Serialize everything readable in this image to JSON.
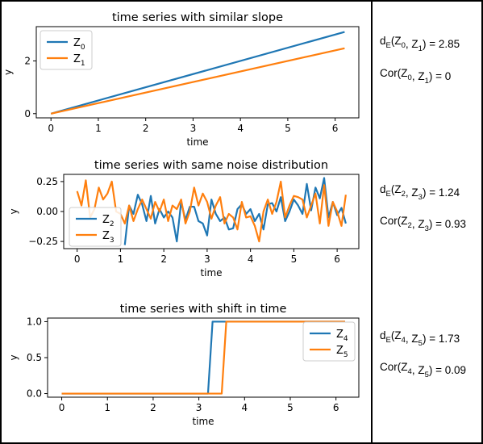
{
  "chart_data": [
    {
      "type": "line",
      "title": "time series with similar slope",
      "xlabel": "time",
      "ylabel": "y",
      "xlim": [
        -0.31,
        6.5
      ],
      "ylim": [
        -0.16,
        3.3
      ],
      "xticks": [
        0,
        1,
        2,
        3,
        4,
        5,
        6
      ],
      "yticks": [
        0,
        2
      ],
      "legend_position": "upper left",
      "series": [
        {
          "name": "Z",
          "sub": "0",
          "color": "#1f77b4",
          "x": [
            0,
            6.2
          ],
          "y": [
            0,
            3.1
          ]
        },
        {
          "name": "Z",
          "sub": "1",
          "color": "#ff7f0e",
          "x": [
            0,
            6.2
          ],
          "y": [
            0,
            2.48
          ]
        }
      ]
    },
    {
      "type": "line",
      "title": "time series with same noise distribution",
      "xlabel": "time",
      "ylabel": "y",
      "xlim": [
        -0.31,
        6.5
      ],
      "ylim": [
        -0.31,
        0.31
      ],
      "xticks": [
        0,
        1,
        2,
        3,
        4,
        5,
        6
      ],
      "yticks": [
        0.25,
        0.0,
        -0.25
      ],
      "ytick_labels": [
        "0.25",
        "0.00",
        "−0.25"
      ],
      "legend_position": "lower left",
      "series": [
        {
          "name": "Z",
          "sub": "2",
          "color": "#1f77b4",
          "x": [
            1.1,
            1.2,
            1.3,
            1.4,
            1.5,
            1.6,
            1.7,
            1.8,
            1.9,
            2.0,
            2.1,
            2.2,
            2.3,
            2.4,
            2.5,
            2.6,
            2.7,
            2.8,
            2.9,
            3.0,
            3.1,
            3.2,
            3.3,
            3.4,
            3.5,
            3.6,
            3.7,
            3.8,
            3.9,
            4.0,
            4.1,
            4.2,
            4.3,
            4.4,
            4.5,
            4.6,
            4.7,
            4.8,
            4.9,
            5.0,
            5.1,
            5.2,
            5.3,
            5.4,
            5.5,
            5.6,
            5.7,
            5.8,
            5.9,
            6.0,
            6.1,
            6.2
          ],
          "y": [
            -0.28,
            0.05,
            -0.02,
            0.14,
            0.06,
            -0.08,
            0.13,
            -0.1,
            0.02,
            -0.05,
            0.0,
            -0.05,
            -0.25,
            0.08,
            -0.07,
            0.04,
            0.04,
            -0.08,
            -0.1,
            -0.2,
            0.1,
            -0.02,
            -0.08,
            -0.05,
            -0.15,
            -0.14,
            0.02,
            0.06,
            -0.02,
            0.02,
            -0.08,
            -0.02,
            -0.15,
            0.06,
            0.07,
            0.0,
            0.12,
            -0.08,
            0.0,
            0.1,
            0.05,
            -0.02,
            0.23,
            0.01,
            0.2,
            0.11,
            0.28,
            -0.05,
            0.08,
            -0.03,
            0.03,
            -0.1
          ]
        },
        {
          "name": "Z",
          "sub": "3",
          "color": "#ff7f0e",
          "x": [
            0.0,
            0.1,
            0.2,
            0.3,
            0.4,
            0.5,
            0.6,
            0.7,
            0.8,
            0.9,
            1.0,
            1.1,
            1.2,
            1.3,
            1.4,
            1.5,
            1.6,
            1.7,
            1.8,
            1.9,
            2.0,
            2.1,
            2.2,
            2.3,
            2.4,
            2.5,
            2.6,
            2.7,
            2.8,
            2.9,
            3.0,
            3.1,
            3.2,
            3.3,
            3.4,
            3.5,
            3.6,
            3.7,
            3.8,
            3.9,
            4.0,
            4.1,
            4.2,
            4.3,
            4.4,
            4.5,
            4.6,
            4.7,
            4.8,
            4.9,
            5.0,
            5.1,
            5.2,
            5.3,
            5.4,
            5.5,
            5.6,
            5.7,
            5.8,
            5.9,
            6.0,
            6.1,
            6.2
          ],
          "y": [
            0.17,
            0.05,
            0.26,
            -0.05,
            0.02,
            0.2,
            0.1,
            0.15,
            0.25,
            0.0,
            -0.02,
            -0.1,
            0.05,
            -0.08,
            0.02,
            0.1,
            0.02,
            -0.06,
            0.08,
            0.0,
            0.1,
            -0.08,
            0.05,
            0.02,
            0.1,
            -0.1,
            0.0,
            0.2,
            0.05,
            0.15,
            0.08,
            -0.06,
            0.05,
            0.12,
            -0.1,
            -0.02,
            -0.05,
            -0.15,
            0.08,
            -0.05,
            -0.04,
            -0.12,
            -0.25,
            0.0,
            0.1,
            -0.02,
            0.08,
            0.25,
            -0.05,
            0.05,
            0.13,
            0.12,
            0.1,
            -0.05,
            0.05,
            0.15,
            -0.1,
            0.22,
            -0.12,
            0.08,
            0.0,
            -0.12,
            0.14
          ]
        }
      ]
    },
    {
      "type": "line",
      "title": "time series with shift in time",
      "xlabel": "time",
      "ylabel": "y",
      "xlim": [
        -0.31,
        6.5
      ],
      "ylim": [
        -0.05,
        1.05
      ],
      "xticks": [
        0,
        1,
        2,
        3,
        4,
        5,
        6
      ],
      "yticks": [
        0.0,
        0.5,
        1.0
      ],
      "ytick_labels": [
        "0.0",
        "0.5",
        "1.0"
      ],
      "legend_position": "upper right",
      "series": [
        {
          "name": "Z",
          "sub": "4",
          "color": "#1f77b4",
          "x": [
            0,
            3.2,
            3.3,
            6.2
          ],
          "y": [
            0,
            0,
            1,
            1
          ]
        },
        {
          "name": "Z",
          "sub": "5",
          "color": "#ff7f0e",
          "x": [
            0,
            3.5,
            3.6,
            6.2
          ],
          "y": [
            0,
            0,
            1,
            1
          ]
        }
      ]
    }
  ],
  "annotations": [
    {
      "d": {
        "pre": "d",
        "sub": "E",
        "args": [
          [
            "Z",
            "0"
          ],
          [
            "Z",
            "1"
          ]
        ],
        "value": "2.85"
      },
      "cor": {
        "pre": "Cor",
        "args": [
          [
            "Z",
            "0"
          ],
          [
            "Z",
            "1"
          ]
        ],
        "value": "0"
      }
    },
    {
      "d": {
        "pre": "d",
        "sub": "E",
        "args": [
          [
            "Z",
            "2"
          ],
          [
            "Z",
            "3"
          ]
        ],
        "value": "1.24"
      },
      "cor": {
        "pre": "Cor",
        "args": [
          [
            "Z",
            "2"
          ],
          [
            "Z",
            "3"
          ]
        ],
        "value": "0.93"
      }
    },
    {
      "d": {
        "pre": "d",
        "sub": "E",
        "args": [
          [
            "Z",
            "4"
          ],
          [
            "Z",
            "5"
          ]
        ],
        "value": "1.73"
      },
      "cor": {
        "pre": "Cor",
        "args": [
          [
            "Z",
            "4"
          ],
          [
            "Z",
            "5"
          ]
        ],
        "value": "0.09"
      }
    }
  ]
}
